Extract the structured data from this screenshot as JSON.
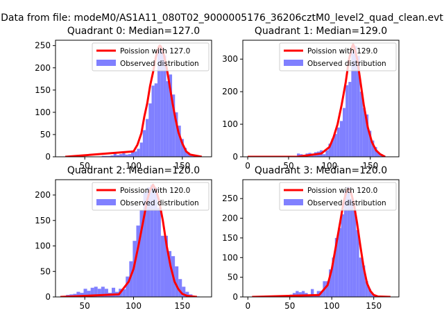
{
  "figure": {
    "suptitle": "Data from file: modeM0/AS1A11_080T02_9000005176_36206cztM0_level2_quad_clean.evt"
  },
  "colors": {
    "hist": "#8080ff",
    "fit": "#ff0000",
    "axis": "#000000"
  },
  "chart_data": [
    {
      "type": "bar",
      "title": "Quadrant 0: Median=127.0",
      "median": 127.0,
      "xlim": [
        20,
        180
      ],
      "ylim": [
        0,
        262
      ],
      "xticks": [
        50,
        100,
        150
      ],
      "yticks": [
        0,
        50,
        100,
        150,
        200,
        250
      ],
      "bin_width": 3.0,
      "bin_centers": [
        33,
        36,
        39,
        42,
        45,
        48,
        51,
        54,
        57,
        60,
        63,
        66,
        69,
        72,
        75,
        78,
        81,
        84,
        87,
        90,
        93,
        96,
        99,
        102,
        105,
        108,
        111,
        114,
        117,
        120,
        123,
        126,
        129,
        132,
        135,
        138,
        141,
        144,
        147,
        150,
        153,
        156,
        159,
        162,
        165,
        168,
        171
      ],
      "values": [
        0,
        0,
        0,
        0,
        0,
        0,
        0,
        0,
        0,
        0,
        0,
        0,
        2,
        2,
        2,
        3,
        8,
        4,
        6,
        8,
        5,
        6,
        12,
        12,
        18,
        32,
        60,
        85,
        120,
        160,
        165,
        240,
        245,
        228,
        170,
        185,
        140,
        100,
        70,
        40,
        20,
        10,
        5,
        3,
        2,
        1,
        0
      ],
      "legend": {
        "fit_label": "Poission with 127.0",
        "hist_label": "Observed distribution",
        "position": "upper right"
      },
      "fit_curve": {
        "x": [
          30,
          100,
          104,
          108,
          111,
          114,
          117,
          120,
          123,
          126,
          127,
          128,
          131,
          134,
          137,
          140,
          143,
          146,
          150,
          154,
          158,
          170
        ],
        "y": [
          0,
          12,
          27,
          53,
          90,
          120,
          160,
          190,
          225,
          248,
          250,
          248,
          230,
          200,
          160,
          120,
          85,
          55,
          30,
          12,
          5,
          0
        ]
      }
    },
    {
      "type": "bar",
      "title": "Quadrant 1: Median=129.0",
      "median": 129.0,
      "xlim": [
        -6,
        185
      ],
      "ylim": [
        0,
        358
      ],
      "xticks": [
        0,
        50,
        100,
        150
      ],
      "yticks": [
        0,
        100,
        200,
        300
      ],
      "bin_width": 3.5,
      "bin_centers": [
        62,
        65.5,
        69,
        72.5,
        76,
        79.5,
        83,
        86.5,
        90,
        93.5,
        97,
        100.5,
        104,
        107.5,
        111,
        114.5,
        118,
        121.5,
        125,
        128.5,
        132,
        135.5,
        139,
        142.5,
        146,
        149.5,
        153,
        156.5,
        160,
        163.5,
        167
      ],
      "values": [
        10,
        8,
        6,
        10,
        12,
        10,
        14,
        16,
        20,
        8,
        20,
        40,
        55,
        70,
        90,
        110,
        150,
        220,
        230,
        325,
        340,
        310,
        200,
        150,
        130,
        80,
        50,
        30,
        12,
        8,
        3
      ],
      "legend": {
        "fit_label": "Poission with 129.0",
        "hist_label": "Observed distribution",
        "position": "upper right"
      },
      "fit_curve": {
        "x": [
          0,
          60,
          90,
          100,
          105,
          110,
          115,
          120,
          124,
          128,
          129,
          130,
          134,
          138,
          142,
          147,
          152,
          157,
          162,
          168
        ],
        "y": [
          0,
          0,
          10,
          30,
          60,
          100,
          160,
          230,
          300,
          340,
          345,
          340,
          300,
          230,
          160,
          90,
          45,
          20,
          8,
          0
        ]
      }
    },
    {
      "type": "bar",
      "title": "Quadrant 2: Median=120.0",
      "median": 120.0,
      "xlim": [
        20,
        180
      ],
      "ylim": [
        0,
        230
      ],
      "xticks": [
        50,
        100,
        150
      ],
      "yticks": [
        0,
        50,
        100,
        150,
        200
      ],
      "bin_width": 3.6,
      "bin_centers": [
        29,
        32.6,
        36.2,
        39.8,
        43.4,
        47,
        50.6,
        54.2,
        57.8,
        61.4,
        65,
        68.6,
        72.2,
        75.8,
        79.4,
        83,
        86.6,
        90.2,
        93.8,
        97.4,
        101,
        104.6,
        108.2,
        111.8,
        115.4,
        119,
        122.6,
        126.2,
        129.8,
        133.4,
        137,
        140.6,
        144.2,
        147.8,
        151.4,
        155,
        158.6,
        162.2,
        165.8
      ],
      "values": [
        2,
        4,
        5,
        6,
        10,
        8,
        16,
        12,
        18,
        20,
        16,
        20,
        16,
        8,
        18,
        10,
        16,
        15,
        40,
        70,
        110,
        140,
        170,
        205,
        215,
        220,
        215,
        175,
        120,
        120,
        90,
        80,
        60,
        35,
        20,
        10,
        5,
        2,
        1
      ],
      "legend": {
        "fit_label": "Poission with 120.0",
        "hist_label": "Observed distribution",
        "position": "upper right"
      },
      "fit_curve": {
        "x": [
          25,
          85,
          95,
          100,
          105,
          110,
          114,
          117,
          120,
          123,
          126,
          130,
          134,
          138,
          142,
          146,
          150,
          155,
          165
        ],
        "y": [
          0,
          5,
          30,
          55,
          100,
          150,
          190,
          210,
          220,
          210,
          190,
          150,
          100,
          60,
          30,
          15,
          6,
          2,
          0
        ]
      }
    },
    {
      "type": "bar",
      "title": "Quadrant 3: Median=120.0",
      "median": 120.0,
      "xlim": [
        -6,
        180
      ],
      "ylim": [
        0,
        298
      ],
      "xticks": [
        0,
        50,
        100,
        150
      ],
      "yticks": [
        0,
        50,
        100,
        150,
        200,
        250
      ],
      "bin_width": 3.6,
      "bin_centers": [
        48,
        51.6,
        55.2,
        58.8,
        62.4,
        66,
        69.6,
        73.2,
        76.8,
        80.4,
        84,
        87.6,
        91.2,
        94.8,
        98.4,
        102,
        105.6,
        109.2,
        112.8,
        116.4,
        120,
        123.6,
        127.2,
        130.8,
        134.4,
        138,
        141.6,
        145.2,
        148.8,
        152.4
      ],
      "values": [
        2,
        6,
        10,
        15,
        12,
        15,
        10,
        5,
        20,
        6,
        15,
        15,
        40,
        40,
        70,
        100,
        150,
        175,
        210,
        270,
        280,
        250,
        220,
        170,
        100,
        80,
        40,
        20,
        8,
        3
      ],
      "legend": {
        "fit_label": "Poission with 120.0",
        "hist_label": "Observed distribution",
        "position": "upper right"
      },
      "fit_curve": {
        "x": [
          5,
          85,
          95,
          100,
          105,
          110,
          114,
          117,
          120,
          123,
          126,
          130,
          134,
          138,
          142,
          146,
          150,
          155,
          170
        ],
        "y": [
          0,
          5,
          30,
          70,
          130,
          190,
          240,
          265,
          275,
          265,
          240,
          190,
          130,
          75,
          35,
          15,
          5,
          1,
          0
        ]
      }
    }
  ]
}
